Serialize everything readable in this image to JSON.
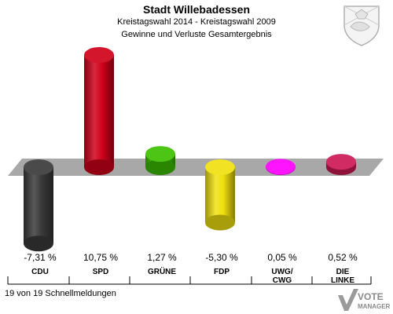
{
  "header": {
    "title": "Stadt Willebadessen",
    "subtitle": "Kreistagswahl 2014 - Kreistagswahl 2009",
    "subtitle2": "Gewinne und Verluste Gesamtergebnis"
  },
  "footer": {
    "status": "19 von 19 Schnellmeldungen"
  },
  "brand": {
    "line1": "VOTE",
    "line2": "MANAGER"
  },
  "chart_data": {
    "type": "bar",
    "categories": [
      "CDU",
      "SPD",
      "GRÜNE",
      "FDP",
      "UWG/ CWG",
      "DIE LINKE"
    ],
    "category_lines": [
      [
        "CDU"
      ],
      [
        "SPD"
      ],
      [
        "GRÜNE"
      ],
      [
        "FDP"
      ],
      [
        "UWG/",
        "CWG"
      ],
      [
        "DIE",
        "LINKE"
      ]
    ],
    "values": [
      -7.31,
      10.75,
      1.27,
      -5.3,
      0.05,
      0.52
    ],
    "value_labels": [
      "-7,31 %",
      "10,75 %",
      "1,27 %",
      "-5,30 %",
      "0,05 %",
      "0,52 %"
    ],
    "colors": [
      "#3a3a3a",
      "#d0021b",
      "#3cc000",
      "#f0e010",
      "#ff00ff",
      "#cc1a55"
    ],
    "title": "Stadt Willebadessen",
    "xlabel": "",
    "ylabel": "",
    "ylim": [
      -8,
      12
    ],
    "grid": false,
    "legend": "none"
  }
}
